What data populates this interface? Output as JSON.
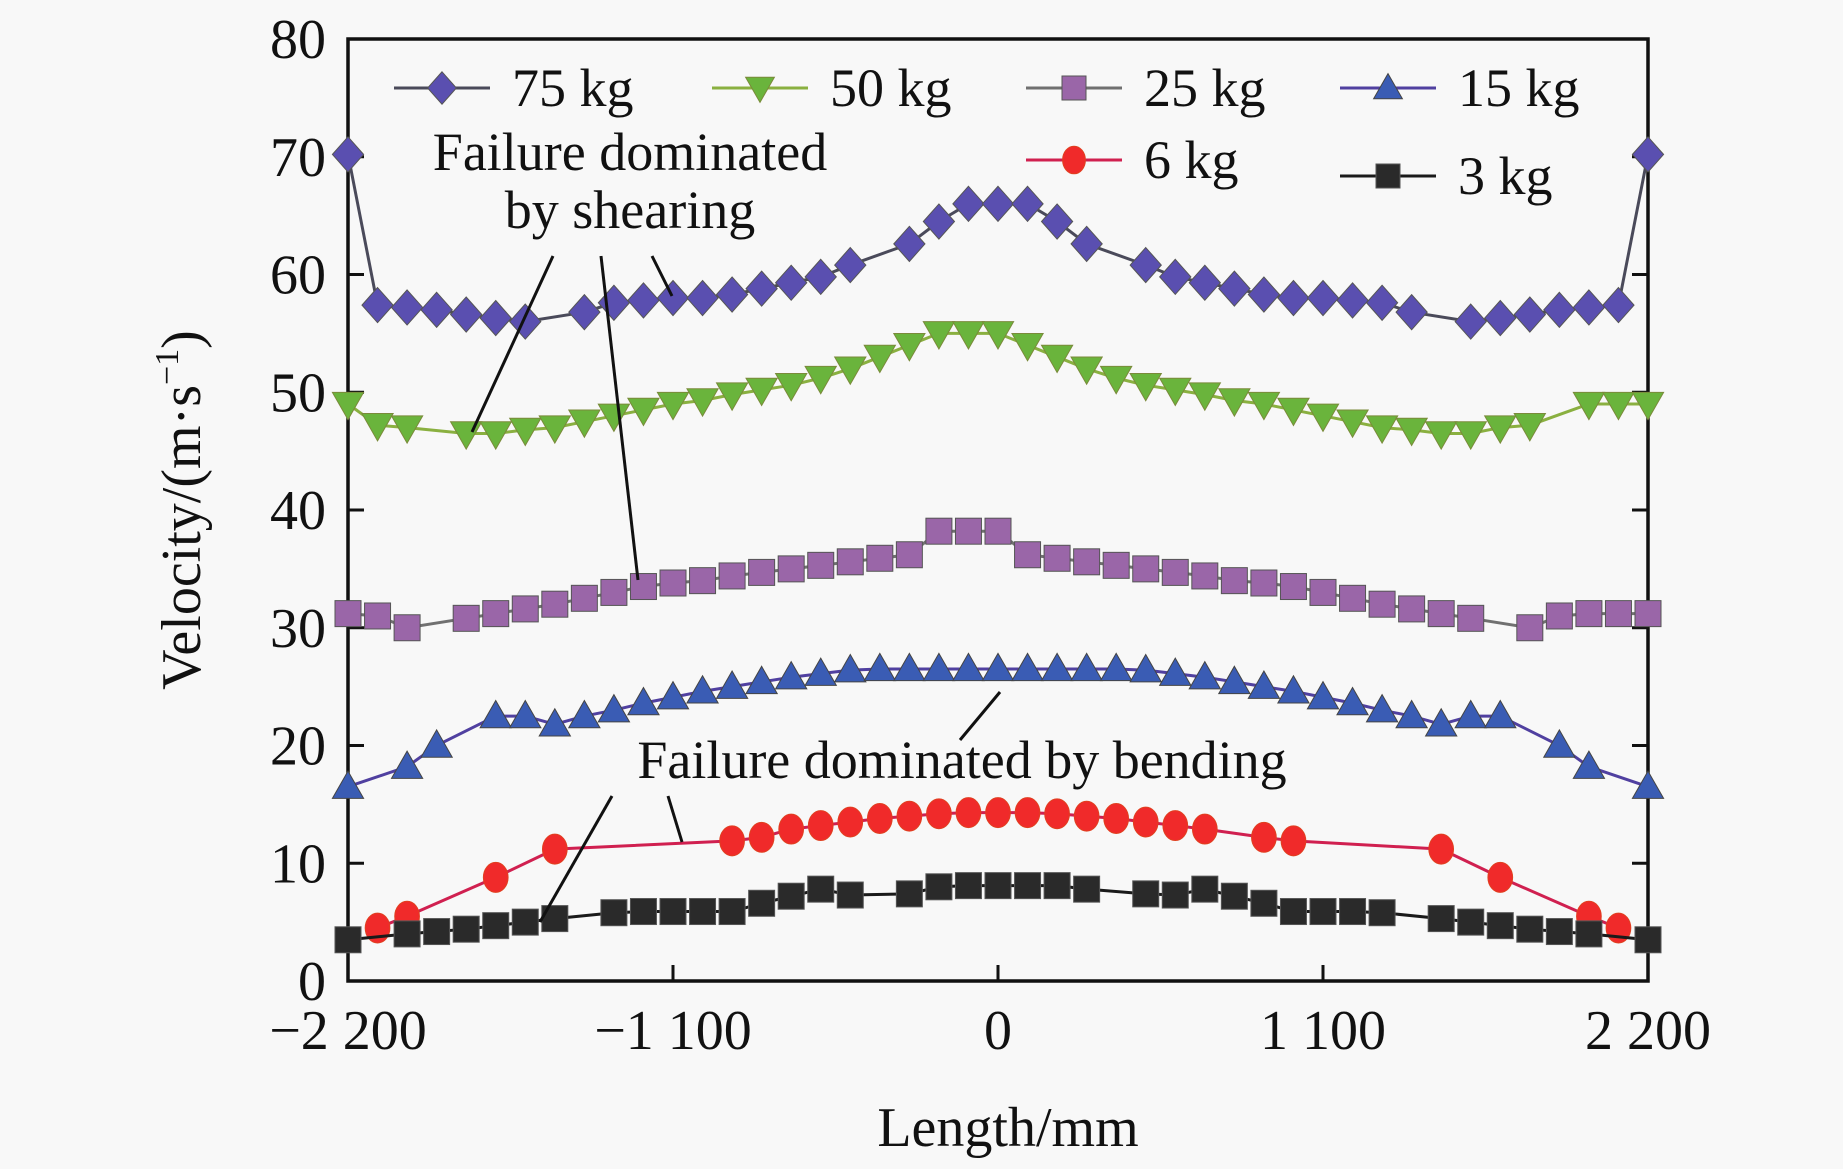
{
  "chart_data": {
    "type": "line",
    "title": "",
    "xlabel": "Length/mm",
    "ylabel": "Velocity/(m·s⁻¹)",
    "ylabel_parts": {
      "main": "Velocity/(m·s",
      "sup": "−1",
      "end": ")"
    },
    "xlim": [
      -2200,
      2200
    ],
    "ylim": [
      0,
      80
    ],
    "xticks": [
      -2200,
      -1100,
      0,
      1100,
      2200
    ],
    "xtick_labels": [
      "−2 200",
      "−1 100",
      "0",
      "1 100",
      "2 200"
    ],
    "yticks": [
      0,
      10,
      20,
      30,
      40,
      50,
      60,
      70,
      80
    ],
    "ytick_labels": [
      "0",
      "10",
      "20",
      "30",
      "40",
      "50",
      "60",
      "70",
      "80"
    ],
    "grid": false,
    "legend_position": "top",
    "series": [
      {
        "name": "75 kg",
        "marker": "diamond",
        "color": "#5a4fb0",
        "line_color": "#4a4a5a",
        "x": [
          -2200,
          -2100,
          -2000,
          -1900,
          -1800,
          -1700,
          -1600,
          -1400,
          -1300,
          -1200,
          -1100,
          -1000,
          -900,
          -800,
          -700,
          -600,
          -500,
          -300,
          -200,
          -100,
          0,
          100,
          200,
          300,
          500,
          600,
          700,
          800,
          900,
          1000,
          1100,
          1200,
          1300,
          1400,
          1600,
          1700,
          1800,
          1900,
          2000,
          2100,
          2200
        ],
        "y": [
          70.2,
          57.4,
          57.2,
          57.0,
          56.6,
          56.3,
          56.0,
          56.8,
          57.6,
          57.8,
          58.0,
          58.0,
          58.3,
          58.8,
          59.3,
          59.8,
          60.8,
          62.6,
          64.5,
          66.0,
          66.0,
          66.0,
          64.5,
          62.6,
          60.8,
          59.8,
          59.3,
          58.8,
          58.3,
          58.0,
          58.0,
          57.8,
          57.6,
          56.8,
          56.0,
          56.3,
          56.6,
          57.0,
          57.2,
          57.4,
          70.2
        ]
      },
      {
        "name": "50 kg",
        "marker": "triangle-down",
        "color": "#6ab43c",
        "line_color": "#8ab040",
        "x": [
          -2200,
          -2100,
          -2000,
          -1800,
          -1700,
          -1600,
          -1500,
          -1400,
          -1300,
          -1200,
          -1100,
          -1000,
          -900,
          -800,
          -700,
          -600,
          -500,
          -400,
          -300,
          -200,
          -100,
          0,
          100,
          200,
          300,
          400,
          500,
          600,
          700,
          800,
          900,
          1000,
          1100,
          1200,
          1300,
          1400,
          1500,
          1600,
          1700,
          1800,
          2000,
          2100,
          2200
        ],
        "y": [
          49.0,
          47.2,
          47.0,
          46.5,
          46.5,
          46.8,
          47.0,
          47.5,
          48.0,
          48.5,
          49.0,
          49.3,
          49.8,
          50.2,
          50.6,
          51.2,
          52.0,
          53.0,
          54.0,
          55.0,
          55.0,
          55.0,
          54.0,
          53.0,
          52.0,
          51.2,
          50.6,
          50.2,
          49.8,
          49.3,
          49.0,
          48.5,
          48.0,
          47.5,
          47.0,
          46.8,
          46.5,
          46.5,
          47.0,
          47.2,
          49.0,
          49.0,
          49.0
        ]
      },
      {
        "name": "25 kg",
        "marker": "square",
        "color": "#9a66a8",
        "line_color": "#707070",
        "x": [
          -2200,
          -2100,
          -2000,
          -1800,
          -1700,
          -1600,
          -1500,
          -1400,
          -1300,
          -1200,
          -1100,
          -1000,
          -900,
          -800,
          -700,
          -600,
          -500,
          -400,
          -300,
          -200,
          -100,
          0,
          100,
          200,
          300,
          400,
          500,
          600,
          700,
          800,
          900,
          1000,
          1100,
          1200,
          1300,
          1400,
          1500,
          1600,
          1800,
          1900,
          2000,
          2100,
          2200
        ],
        "y": [
          31.2,
          31.0,
          30.0,
          30.8,
          31.2,
          31.6,
          32.0,
          32.5,
          33.0,
          33.5,
          33.8,
          34.0,
          34.4,
          34.7,
          35.0,
          35.3,
          35.6,
          35.9,
          36.2,
          38.2,
          38.2,
          38.2,
          36.2,
          35.9,
          35.6,
          35.3,
          35.0,
          34.7,
          34.4,
          34.0,
          33.8,
          33.5,
          33.0,
          32.5,
          32.0,
          31.6,
          31.2,
          30.8,
          30.0,
          31.0,
          31.2,
          31.2,
          31.2
        ]
      },
      {
        "name": "15 kg",
        "marker": "triangle-up",
        "color": "#3a5cb4",
        "line_color": "#5040a0",
        "x": [
          -2200,
          -2000,
          -1900,
          -1700,
          -1600,
          -1500,
          -1400,
          -1300,
          -1200,
          -1100,
          -1000,
          -900,
          -800,
          -700,
          -600,
          -500,
          -400,
          -300,
          -200,
          -100,
          0,
          100,
          200,
          300,
          400,
          500,
          600,
          700,
          800,
          900,
          1000,
          1100,
          1200,
          1300,
          1400,
          1500,
          1600,
          1700,
          1900,
          2000,
          2200
        ],
        "y": [
          16.5,
          18.2,
          20.0,
          22.5,
          22.5,
          21.8,
          22.5,
          23.0,
          23.6,
          24.1,
          24.6,
          25.0,
          25.4,
          25.8,
          26.1,
          26.4,
          26.5,
          26.5,
          26.5,
          26.5,
          26.5,
          26.5,
          26.5,
          26.5,
          26.5,
          26.4,
          26.1,
          25.8,
          25.4,
          25.0,
          24.6,
          24.1,
          23.6,
          23.0,
          22.5,
          21.8,
          22.5,
          22.5,
          20.0,
          18.2,
          16.5
        ]
      },
      {
        "name": "6 kg",
        "marker": "circle",
        "color": "#f02a2a",
        "line_color": "#d02050",
        "x": [
          -2100,
          -2000,
          -1700,
          -1500,
          -900,
          -800,
          -700,
          -600,
          -500,
          -400,
          -300,
          -200,
          -100,
          0,
          100,
          200,
          300,
          400,
          500,
          600,
          700,
          900,
          1000,
          1500,
          1700,
          2000,
          2100
        ],
        "y": [
          4.5,
          5.5,
          8.8,
          11.2,
          11.9,
          12.2,
          12.9,
          13.2,
          13.5,
          13.8,
          14.0,
          14.2,
          14.3,
          14.3,
          14.3,
          14.2,
          14.0,
          13.8,
          13.5,
          13.2,
          12.9,
          12.2,
          11.9,
          11.2,
          8.8,
          5.5,
          4.5
        ]
      },
      {
        "name": "3 kg",
        "marker": "square",
        "color": "#2a2a2a",
        "line_color": "#1a1a1a",
        "x": [
          -2200,
          -2000,
          -1900,
          -1800,
          -1700,
          -1600,
          -1500,
          -1300,
          -1200,
          -1100,
          -1000,
          -900,
          -800,
          -700,
          -600,
          -500,
          -300,
          -200,
          -100,
          0,
          100,
          200,
          300,
          500,
          600,
          700,
          800,
          900,
          1000,
          1100,
          1200,
          1300,
          1500,
          1600,
          1700,
          1800,
          1900,
          2000,
          2200
        ],
        "y": [
          3.5,
          4.0,
          4.2,
          4.4,
          4.7,
          5.0,
          5.3,
          5.8,
          5.9,
          5.9,
          5.9,
          5.9,
          6.6,
          7.2,
          7.8,
          7.3,
          7.4,
          8.0,
          8.1,
          8.1,
          8.1,
          8.1,
          7.8,
          7.4,
          7.3,
          7.8,
          7.2,
          6.6,
          5.9,
          5.9,
          5.9,
          5.8,
          5.3,
          5.0,
          4.7,
          4.4,
          4.2,
          4.0,
          3.5
        ]
      }
    ],
    "annotations": [
      {
        "text_lines": [
          "Failure dominated",
          "by shearing"
        ],
        "targets": [
          "50 kg",
          "25 kg",
          "75 kg"
        ]
      },
      {
        "text_lines": [
          "Failure dominated by bending"
        ],
        "targets": [
          "3 kg",
          "6 kg",
          "15 kg"
        ]
      }
    ]
  }
}
